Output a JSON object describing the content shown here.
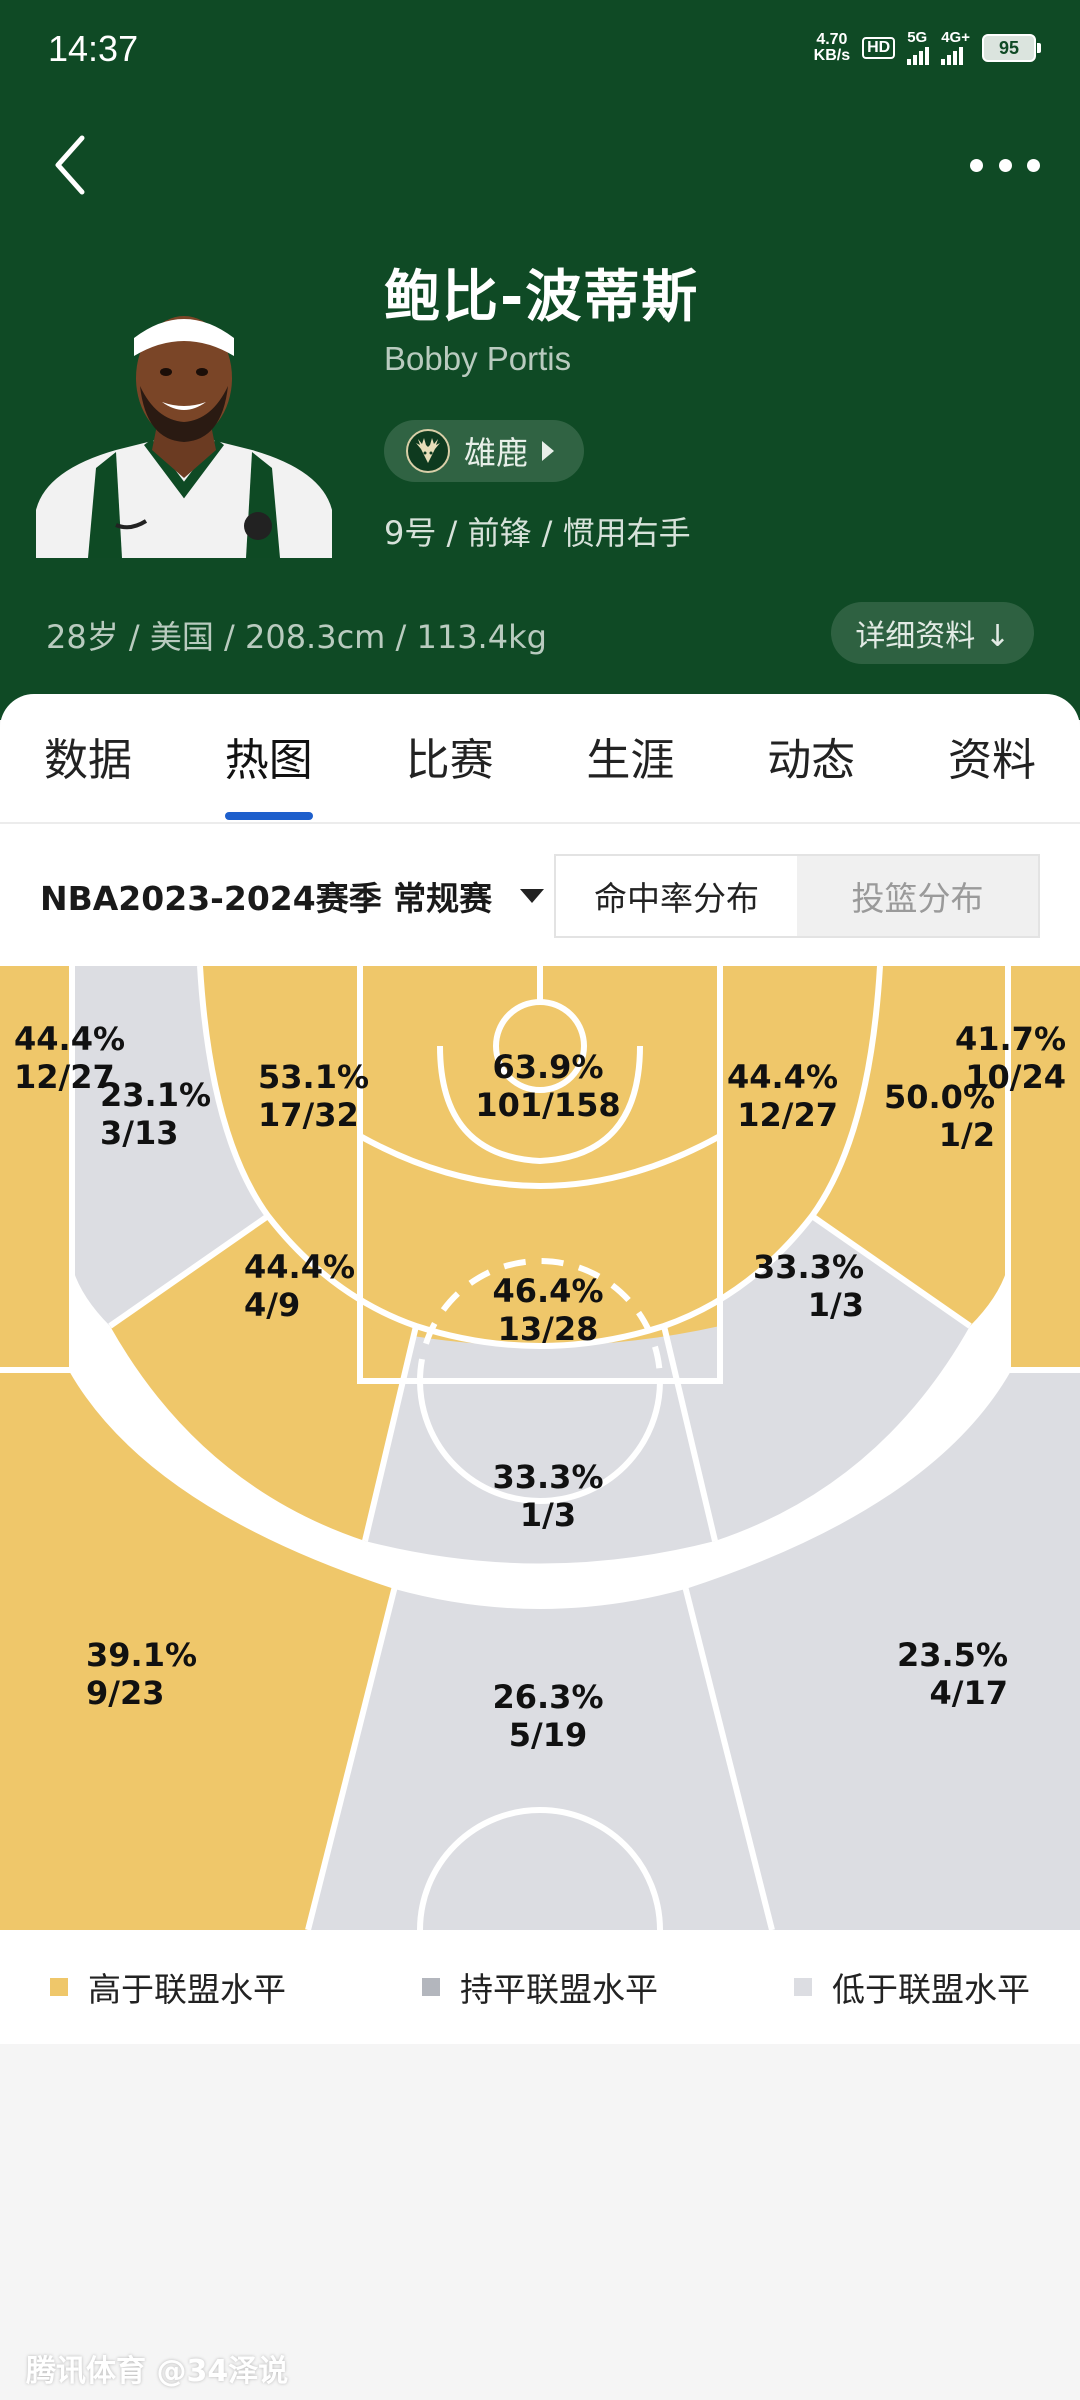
{
  "status_bar": {
    "time": "14:37",
    "net_speed_value": "4.70",
    "net_speed_unit": "KB/s",
    "hd_label": "HD",
    "sim1_label": "5G",
    "sim2_label": "4G+",
    "battery": "95"
  },
  "player": {
    "name_cn": "鲍比-波蒂斯",
    "name_en": "Bobby Portis",
    "team": "雄鹿",
    "info": "9号 / 前锋 / 惯用右手",
    "body": "28岁 / 美国 / 208.3cm / 113.4kg",
    "detail_button": "详细资料 ↓"
  },
  "tabs": [
    "数据",
    "热图",
    "比赛",
    "生涯",
    "动态",
    "资料"
  ],
  "active_tab": 1,
  "filter": {
    "season": "NBA2023-2024赛季 常规赛",
    "seg_active": "命中率分布",
    "seg_inactive": "投篮分布"
  },
  "colors": {
    "header_bg": "#0f4a25",
    "above_league": "#efc76a",
    "equal_league": "#b3b6bd",
    "below_league": "#dcdde2",
    "accent_blue": "#1e5fcc"
  },
  "zones": [
    {
      "id": "left-corner-three",
      "pct": "44.4%",
      "made": "12/27",
      "level": "above"
    },
    {
      "id": "left-baseline-mid",
      "pct": "23.1%",
      "made": "3/13",
      "level": "below"
    },
    {
      "id": "left-mid",
      "pct": "53.1%",
      "made": "17/32",
      "level": "above"
    },
    {
      "id": "restricted-area",
      "pct": "63.9%",
      "made": "101/158",
      "level": "above"
    },
    {
      "id": "right-mid",
      "pct": "44.4%",
      "made": "12/27",
      "level": "above"
    },
    {
      "id": "right-baseline-mid",
      "pct": "50.0%",
      "made": "1/2",
      "level": "above"
    },
    {
      "id": "right-corner-three",
      "pct": "41.7%",
      "made": "10/24",
      "level": "above"
    },
    {
      "id": "paint-non-ra",
      "pct": "46.4%",
      "made": "13/28",
      "level": "above"
    },
    {
      "id": "left-elbow-mid",
      "pct": "44.4%",
      "made": "4/9",
      "level": "above"
    },
    {
      "id": "right-elbow-mid",
      "pct": "33.3%",
      "made": "1/3",
      "level": "below"
    },
    {
      "id": "top-key-mid",
      "pct": "33.3%",
      "made": "1/3",
      "level": "below"
    },
    {
      "id": "left-wing-three",
      "pct": "39.1%",
      "made": "9/23",
      "level": "above"
    },
    {
      "id": "top-three",
      "pct": "26.3%",
      "made": "5/19",
      "level": "below"
    },
    {
      "id": "right-wing-three",
      "pct": "23.5%",
      "made": "4/17",
      "level": "below"
    }
  ],
  "legend": [
    {
      "label": "高于联盟水平",
      "color": "#efc76a"
    },
    {
      "label": "持平联盟水平",
      "color": "#b3b6bd"
    },
    {
      "label": "低于联盟水平",
      "color": "#dcdde2"
    }
  ],
  "watermark": "腾讯体育 @34泽说"
}
